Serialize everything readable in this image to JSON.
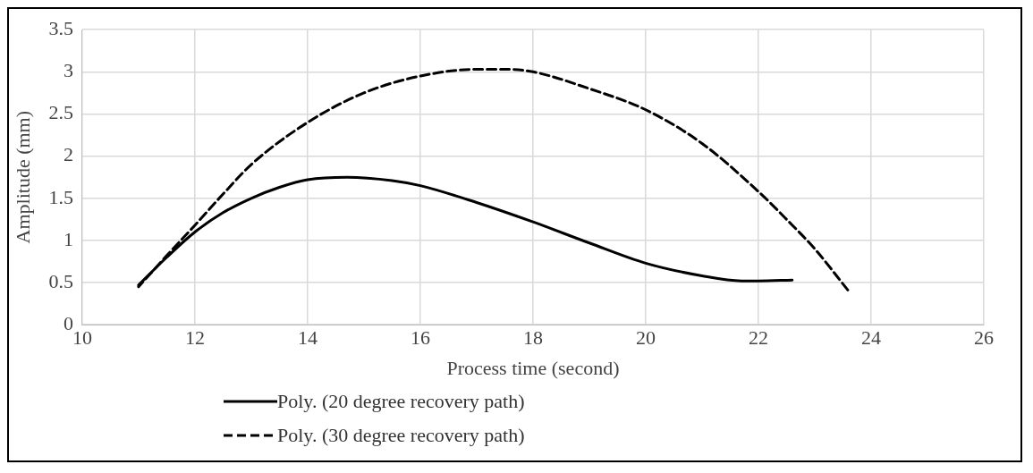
{
  "chart_data": {
    "type": "line",
    "xlabel": "Process time (second)",
    "ylabel": "Amplitude (mm)",
    "xlim": [
      10,
      26
    ],
    "xticks": [
      10,
      12,
      14,
      16,
      18,
      20,
      22,
      24,
      26
    ],
    "ylim": [
      0,
      3.5
    ],
    "yticks": [
      0,
      0.5,
      1,
      1.5,
      2,
      2.5,
      3,
      3.5
    ],
    "grid": true,
    "legend": "bottom",
    "marker": "none",
    "series": [
      {
        "name": "Poly. (20 degree recovery path)",
        "color": "#000000",
        "line_style": "solid",
        "x": [
          11,
          11.5,
          12,
          12.5,
          13,
          13.5,
          14,
          14.7,
          15.5,
          16,
          17,
          18,
          19,
          20,
          21,
          21.7,
          22,
          22.6
        ],
        "values": [
          0.47,
          0.8,
          1.1,
          1.33,
          1.5,
          1.63,
          1.72,
          1.75,
          1.71,
          1.65,
          1.45,
          1.22,
          0.97,
          0.73,
          0.58,
          0.52,
          0.52,
          0.53
        ]
      },
      {
        "name": "Poly. (30 degree recovery path)",
        "color": "#000000",
        "line_style": "dashed",
        "x": [
          11,
          11.5,
          12,
          12.5,
          13,
          14,
          15,
          16,
          17,
          17.5,
          18,
          19,
          20,
          21,
          22,
          22.5,
          23,
          23.6
        ],
        "values": [
          0.45,
          0.82,
          1.18,
          1.55,
          1.9,
          2.4,
          2.75,
          2.95,
          3.03,
          3.03,
          3.0,
          2.8,
          2.55,
          2.15,
          1.58,
          1.25,
          0.9,
          0.4
        ]
      }
    ]
  }
}
